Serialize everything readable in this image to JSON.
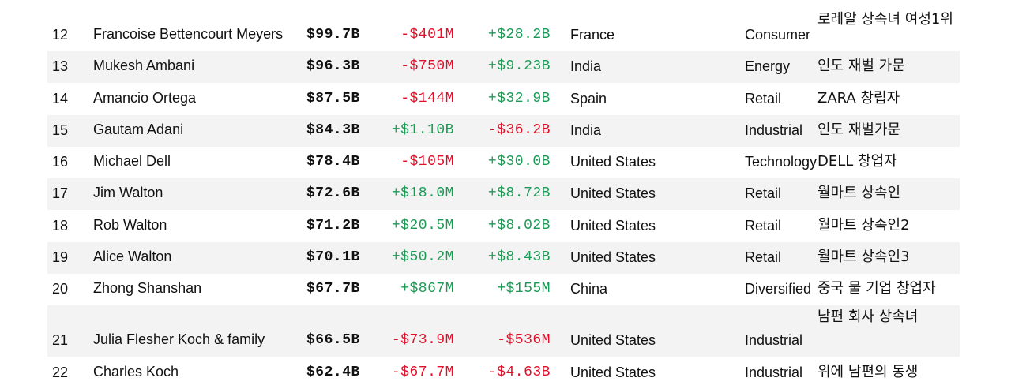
{
  "colors": {
    "negative": "#e0102b",
    "positive": "#1b9a55",
    "row_shade": "#f3f3f3"
  },
  "rows": [
    {
      "rank": "12",
      "name": "Francoise Bettencourt Meyers",
      "worth": "$99.7B",
      "last_change": "-$401M",
      "ytd_change": "+$28.2B",
      "country": "France",
      "industry": "Consumer",
      "note": "로레알 상속녀 여성1위"
    },
    {
      "rank": "13",
      "name": "Mukesh Ambani",
      "worth": "$96.3B",
      "last_change": "-$750M",
      "ytd_change": "+$9.23B",
      "country": "India",
      "industry": "Energy",
      "note": "인도 재벌 가문"
    },
    {
      "rank": "14",
      "name": "Amancio Ortega",
      "worth": "$87.5B",
      "last_change": "-$144M",
      "ytd_change": "+$32.9B",
      "country": "Spain",
      "industry": "Retail",
      "note": "ZARA 창립자"
    },
    {
      "rank": "15",
      "name": "Gautam Adani",
      "worth": "$84.3B",
      "last_change": "+$1.10B",
      "ytd_change": "-$36.2B",
      "country": "India",
      "industry": "Industrial",
      "note": "인도 재벌가문"
    },
    {
      "rank": "16",
      "name": "Michael Dell",
      "worth": "$78.4B",
      "last_change": "-$105M",
      "ytd_change": "+$30.0B",
      "country": "United States",
      "industry": "Technology",
      "note": "DELL 창업자"
    },
    {
      "rank": "17",
      "name": "Jim Walton",
      "worth": "$72.6B",
      "last_change": "+$18.0M",
      "ytd_change": "+$8.72B",
      "country": "United States",
      "industry": "Retail",
      "note": "월마트 상속인"
    },
    {
      "rank": "18",
      "name": "Rob Walton",
      "worth": "$71.2B",
      "last_change": "+$20.5M",
      "ytd_change": "+$8.02B",
      "country": "United States",
      "industry": "Retail",
      "note": "월마트 상속인2"
    },
    {
      "rank": "19",
      "name": "Alice Walton",
      "worth": "$70.1B",
      "last_change": "+$50.2M",
      "ytd_change": "+$8.43B",
      "country": "United States",
      "industry": "Retail",
      "note": "월마트 상속인3"
    },
    {
      "rank": "20",
      "name": "Zhong Shanshan",
      "worth": "$67.7B",
      "last_change": "+$867M",
      "ytd_change": "+$155M",
      "country": "China",
      "industry": "Diversified",
      "note": "중국 물 기업 창업자"
    },
    {
      "rank": "21",
      "name": "Julia Flesher Koch & family",
      "worth": "$66.5B",
      "last_change": "-$73.9M",
      "ytd_change": "-$536M",
      "country": "United States",
      "industry": "Industrial",
      "note": "남편 회사 상속녀"
    },
    {
      "rank": "22",
      "name": "Charles Koch",
      "worth": "$62.4B",
      "last_change": "-$67.7M",
      "ytd_change": "-$4.63B",
      "country": "United States",
      "industry": "Industrial",
      "note": "위에 남편의 동생"
    }
  ]
}
